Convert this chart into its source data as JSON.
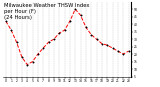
{
  "title": "Milwaukee Weather THSW Index\nper Hour (F)\n(24 Hours)",
  "hours": [
    0,
    1,
    2,
    3,
    4,
    5,
    6,
    7,
    8,
    9,
    10,
    11,
    12,
    13,
    14,
    15,
    16,
    17,
    18,
    19,
    20,
    21,
    22,
    23
  ],
  "values": [
    42,
    36,
    28,
    18,
    13,
    15,
    20,
    24,
    28,
    30,
    34,
    36,
    42,
    50,
    46,
    38,
    33,
    30,
    27,
    26,
    24,
    22,
    20,
    22
  ],
  "line_color": "#ff0000",
  "marker_color": "#000000",
  "bg_color": "#ffffff",
  "ylim": [
    5,
    55
  ],
  "ytick_values": [
    5,
    10,
    15,
    20,
    25,
    30,
    35,
    40,
    45,
    50
  ],
  "ytick_labels": [
    "5",
    "10",
    "15",
    "20",
    "25",
    "30",
    "35",
    "40",
    "45",
    "50"
  ],
  "grid_color": "#888888",
  "title_fontsize": 3.8,
  "line_width": 0.7,
  "marker_size": 2.0
}
